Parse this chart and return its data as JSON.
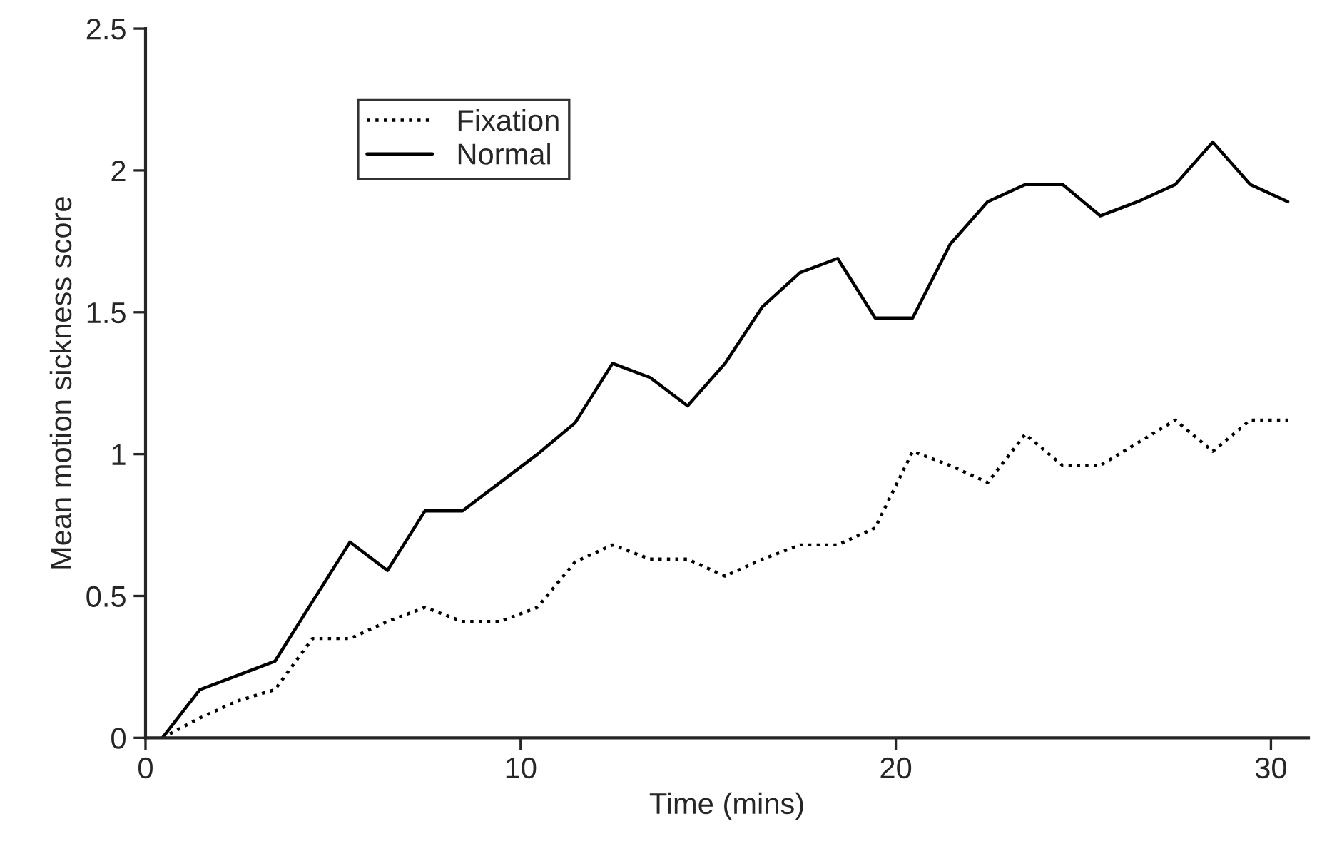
{
  "chart_data": {
    "type": "line",
    "xlabel": "Time (mins)",
    "ylabel": "Mean motion sickness score",
    "x": [
      0.45,
      1.45,
      2.45,
      3.45,
      4.45,
      5.45,
      6.45,
      7.45,
      8.45,
      9.45,
      10.45,
      11.45,
      12.45,
      13.45,
      14.45,
      15.45,
      16.45,
      17.45,
      18.45,
      19.45,
      20.45,
      21.45,
      22.45,
      23.45,
      24.45,
      25.45,
      26.45,
      27.45,
      28.45,
      29.45,
      30.45
    ],
    "series": [
      {
        "name": "Fixation",
        "color": "#000000",
        "line_style": "dotted",
        "values": [
          0,
          0.07,
          0.13,
          0.17,
          0.35,
          0.35,
          0.41,
          0.46,
          0.41,
          0.41,
          0.46,
          0.62,
          0.68,
          0.63,
          0.63,
          0.57,
          0.63,
          0.68,
          0.68,
          0.74,
          1.01,
          0.96,
          0.9,
          1.07,
          0.96,
          0.96,
          1.04,
          1.12,
          1.01,
          1.12,
          1.12
        ]
      },
      {
        "name": "Normal",
        "color": "#000000",
        "line_style": "solid",
        "values": [
          0,
          0.17,
          0.22,
          0.27,
          0.48,
          0.69,
          0.59,
          0.8,
          0.8,
          0.9,
          1.0,
          1.11,
          1.32,
          1.27,
          1.17,
          1.32,
          1.52,
          1.64,
          1.69,
          1.48,
          1.48,
          1.74,
          1.89,
          1.95,
          1.95,
          1.84,
          1.89,
          1.95,
          2.1,
          1.95,
          1.89
        ]
      }
    ],
    "xlim": [
      0,
      31
    ],
    "xticks": [
      0,
      10,
      20,
      30
    ],
    "ylim": [
      0,
      2.5
    ],
    "yticks": [
      0,
      0.5,
      1,
      1.5,
      2,
      2.5
    ],
    "grid": false,
    "legend": "top left",
    "marker": "none"
  }
}
